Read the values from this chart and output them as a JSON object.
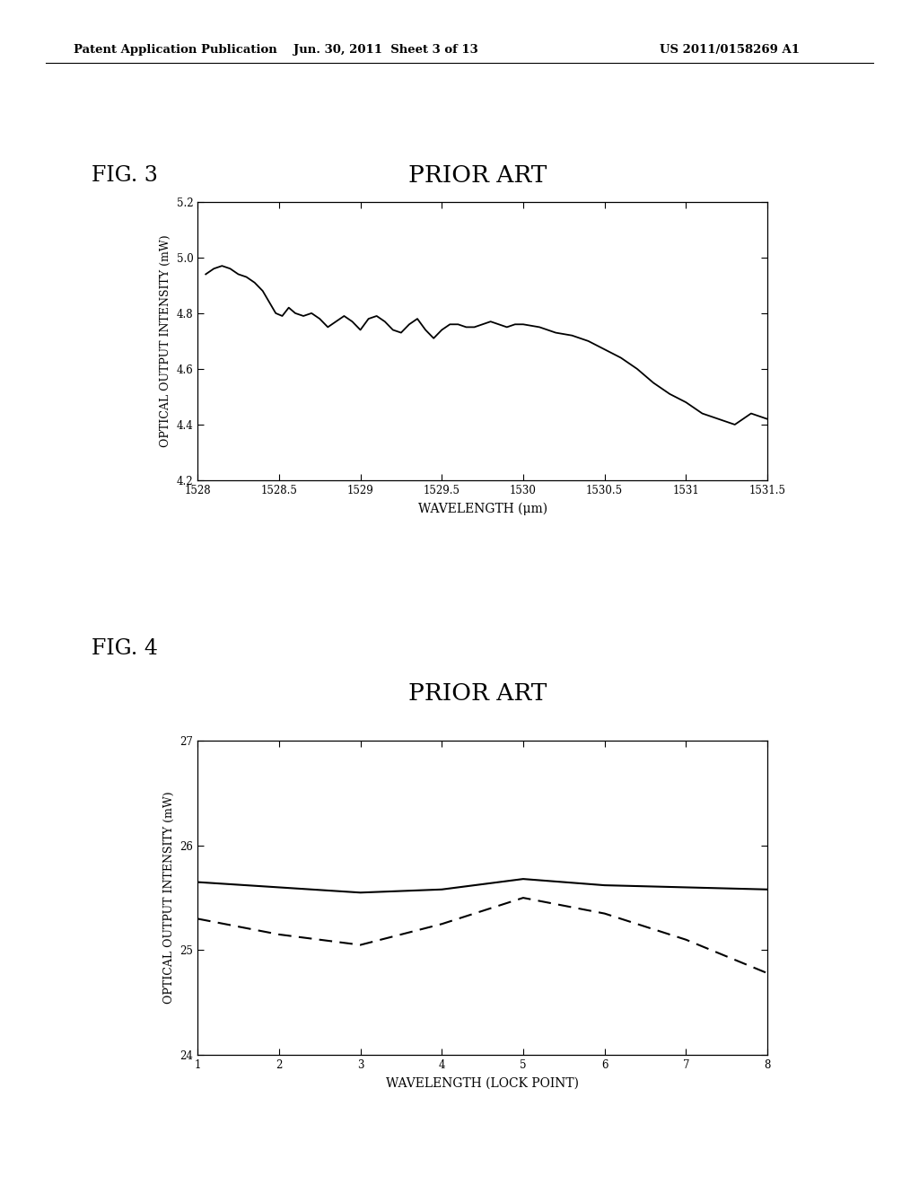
{
  "page_header_left": "Patent Application Publication",
  "page_header_mid": "Jun. 30, 2011  Sheet 3 of 13",
  "page_header_right": "US 2011/0158269 A1",
  "fig3_label": "FIG. 3",
  "fig3_subtitle": "PRIOR ART",
  "fig3_xlabel": "WAVELENGTH (μm)",
  "fig3_ylabel": "OPTICAL OUTPUT INTENSITY (mW)",
  "fig3_xlim": [
    1528,
    1531.5
  ],
  "fig3_ylim": [
    4.2,
    5.2
  ],
  "fig3_xticks": [
    1528,
    1528.5,
    1529,
    1529.5,
    1530,
    1530.5,
    1531,
    1531.5
  ],
  "fig3_yticks": [
    4.2,
    4.4,
    4.6,
    4.8,
    5.0,
    5.2
  ],
  "fig3_x": [
    1528.05,
    1528.1,
    1528.15,
    1528.2,
    1528.25,
    1528.3,
    1528.35,
    1528.4,
    1528.44,
    1528.48,
    1528.52,
    1528.56,
    1528.6,
    1528.65,
    1528.7,
    1528.75,
    1528.8,
    1528.85,
    1528.9,
    1528.95,
    1529.0,
    1529.05,
    1529.1,
    1529.15,
    1529.2,
    1529.25,
    1529.3,
    1529.35,
    1529.4,
    1529.45,
    1529.5,
    1529.55,
    1529.6,
    1529.65,
    1529.7,
    1529.75,
    1529.8,
    1529.85,
    1529.9,
    1529.95,
    1530.0,
    1530.1,
    1530.2,
    1530.3,
    1530.4,
    1530.5,
    1530.6,
    1530.7,
    1530.8,
    1530.9,
    1531.0,
    1531.1,
    1531.2,
    1531.3,
    1531.4,
    1531.5
  ],
  "fig3_y": [
    4.94,
    4.96,
    4.97,
    4.96,
    4.94,
    4.93,
    4.91,
    4.88,
    4.84,
    4.8,
    4.79,
    4.82,
    4.8,
    4.79,
    4.8,
    4.78,
    4.75,
    4.77,
    4.79,
    4.77,
    4.74,
    4.78,
    4.79,
    4.77,
    4.74,
    4.73,
    4.76,
    4.78,
    4.74,
    4.71,
    4.74,
    4.76,
    4.76,
    4.75,
    4.75,
    4.76,
    4.77,
    4.76,
    4.75,
    4.76,
    4.76,
    4.75,
    4.73,
    4.72,
    4.7,
    4.67,
    4.64,
    4.6,
    4.55,
    4.51,
    4.48,
    4.44,
    4.42,
    4.4,
    4.44,
    4.42
  ],
  "fig4_label": "FIG. 4",
  "fig4_subtitle": "PRIOR ART",
  "fig4_xlabel": "WAVELENGTH (LOCK POINT)",
  "fig4_ylabel": "OPTICAL OUTPUT INTENSITY (mW)",
  "fig4_xlim": [
    1,
    8
  ],
  "fig4_ylim": [
    24,
    27
  ],
  "fig4_xticks": [
    1,
    2,
    3,
    4,
    5,
    6,
    7,
    8
  ],
  "fig4_yticks": [
    24,
    25,
    26,
    27
  ],
  "fig4_x": [
    1,
    2,
    3,
    4,
    5,
    6,
    7,
    8
  ],
  "fig4_solid_y": [
    25.65,
    25.6,
    25.55,
    25.58,
    25.68,
    25.62,
    25.6,
    25.58
  ],
  "fig4_dashed_y": [
    25.3,
    25.15,
    25.05,
    25.25,
    25.5,
    25.35,
    25.1,
    24.78
  ],
  "bg_color": "#ffffff",
  "line_color": "#000000",
  "text_color": "#000000",
  "font_family": "serif"
}
